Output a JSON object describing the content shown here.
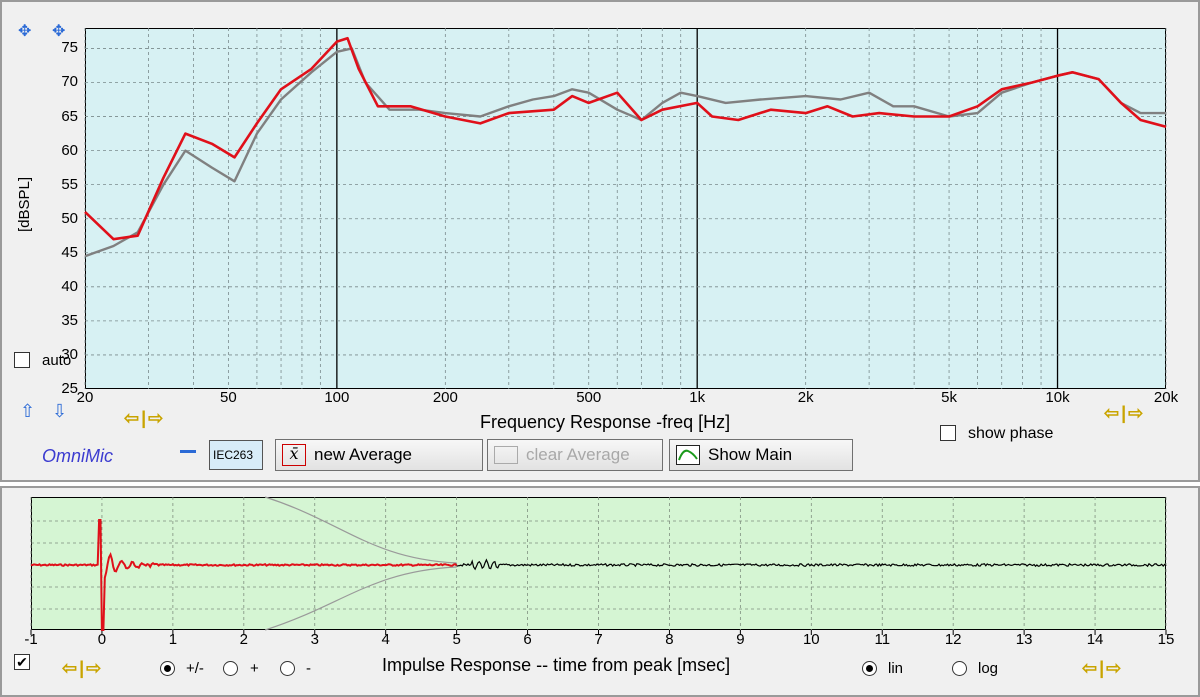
{
  "frequency_panel": {
    "y_axis_label": "[dBSPL]",
    "y_ticks": [
      "75",
      "70",
      "65",
      "60",
      "55",
      "50",
      "45",
      "40",
      "35",
      "30",
      "25"
    ],
    "x_ticks": [
      "20",
      "50",
      "100",
      "200",
      "500",
      "1k",
      "2k",
      "5k",
      "10k",
      "20k"
    ],
    "x_title": "Frequency Response -freq [Hz]",
    "auto_label": "auto",
    "show_phase_label": "show phase",
    "brand": "OmniMic",
    "iec_badge": "IEC263",
    "new_average_label": "new Average",
    "clear_average_label": "clear Average",
    "show_main_label": "Show Main"
  },
  "impulse_panel": {
    "x_ticks": [
      "-1",
      "0",
      "1",
      "2",
      "3",
      "4",
      "5",
      "6",
      "7",
      "8",
      "9",
      "10",
      "11",
      "12",
      "13",
      "14",
      "15"
    ],
    "x_title": "Impulse Response  -- time from peak [msec]",
    "polarity_options": [
      "+/-",
      "+",
      "-"
    ],
    "scale_options": [
      "lin",
      "log"
    ]
  },
  "chart_data": [
    {
      "type": "line",
      "x_scale": "log",
      "xlim": [
        20,
        20000
      ],
      "ylim": [
        25,
        78
      ],
      "xlabel": "Frequency Response -freq [Hz]",
      "ylabel": "[dBSPL]",
      "grid": true,
      "series": [
        {
          "color": "#e0101a",
          "x": [
            20,
            24,
            28,
            33,
            38,
            45,
            52,
            60,
            70,
            85,
            100,
            107,
            115,
            130,
            160,
            200,
            250,
            300,
            400,
            450,
            500,
            600,
            700,
            800,
            1000,
            1100,
            1300,
            1600,
            2000,
            2300,
            2700,
            3200,
            4000,
            5000,
            6000,
            7000,
            8500,
            10000,
            11000,
            13000,
            15000,
            17000,
            20000
          ],
          "y": [
            51,
            47,
            47.5,
            56,
            62.5,
            61,
            59,
            64,
            69,
            72,
            76,
            76.5,
            72,
            66.5,
            66.5,
            65,
            64,
            65.5,
            66,
            68,
            67,
            68.5,
            64.5,
            66,
            67,
            65,
            64.5,
            66,
            65.5,
            66.5,
            65,
            65.5,
            65,
            65,
            66.5,
            69,
            70,
            71,
            71.5,
            70.5,
            67,
            64.5,
            63.5
          ]
        },
        {
          "color": "#808080",
          "x": [
            20,
            24,
            28,
            33,
            38,
            45,
            52,
            60,
            70,
            85,
            100,
            110,
            120,
            140,
            170,
            200,
            250,
            300,
            350,
            400,
            450,
            500,
            600,
            700,
            800,
            900,
            1000,
            1200,
            1500,
            2000,
            2500,
            3000,
            3500,
            4000,
            5000,
            6000,
            7000,
            8500,
            10000,
            11000,
            13000,
            15000,
            17000,
            20000
          ],
          "y": [
            44.5,
            46,
            48,
            55,
            60,
            57.5,
            55.5,
            62.5,
            67.5,
            71.5,
            74.5,
            75,
            70,
            66,
            66,
            65.5,
            65,
            66.5,
            67.5,
            68,
            69,
            68.5,
            66,
            64.5,
            67,
            68.5,
            68,
            67,
            67.5,
            68,
            67.5,
            68.5,
            66.5,
            66.5,
            65,
            65.5,
            68.5,
            70,
            71,
            71.5,
            70.5,
            67,
            65.5,
            65.5
          ]
        }
      ]
    },
    {
      "type": "line",
      "xlim": [
        -1,
        15
      ],
      "xlabel": "Impulse Response  -- time from peak [msec]",
      "grid": true,
      "series": [
        {
          "color": "#e0101a",
          "x_range": [
            -1,
            5
          ]
        },
        {
          "color": "#000000",
          "x_range": [
            5,
            15
          ]
        },
        {
          "color": "#9a9a9a"
        }
      ]
    }
  ],
  "colors": {
    "fr_background": "#d7f1f3",
    "ir_background": "#d5f5d3",
    "brand_color": "#3c3cd0",
    "nav_arrow_color": "#c9a400"
  },
  "icons": [
    "move-arrows-icon",
    "zoom-arrows-icon",
    "up-arrow-icon",
    "down-arrow-icon",
    "scroll-left-icon",
    "scroll-right-icon",
    "average-icon",
    "show-main-icon",
    "clear-average-icon"
  ]
}
